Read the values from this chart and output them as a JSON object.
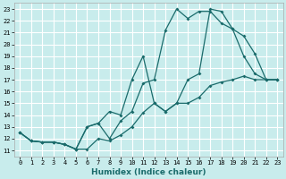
{
  "xlabel": "Humidex (Indice chaleur)",
  "bg_color": "#c8ecec",
  "grid_color": "#b0dada",
  "line_color": "#1a6b6b",
  "xlim": [
    -0.5,
    23.5
  ],
  "ylim": [
    10.5,
    23.5
  ],
  "xticks": [
    0,
    1,
    2,
    3,
    4,
    5,
    6,
    7,
    8,
    9,
    10,
    11,
    12,
    13,
    14,
    15,
    16,
    17,
    18,
    19,
    20,
    21,
    22,
    23
  ],
  "yticks": [
    11,
    12,
    13,
    14,
    15,
    16,
    17,
    18,
    19,
    20,
    21,
    22,
    23
  ],
  "line1_x": [
    0,
    1,
    2,
    3,
    4,
    5,
    6,
    7,
    8,
    9,
    10,
    11,
    12,
    13,
    14,
    15,
    16,
    17,
    18,
    19,
    20,
    21,
    22,
    23
  ],
  "line1_y": [
    12.5,
    11.8,
    11.7,
    11.7,
    11.5,
    11.1,
    11.1,
    12.0,
    11.8,
    12.3,
    13.0,
    14.2,
    15.0,
    14.3,
    15.0,
    15.0,
    15.5,
    16.5,
    16.8,
    17.0,
    17.3,
    17.0,
    17.0,
    17.0
  ],
  "line2_x": [
    0,
    1,
    2,
    3,
    4,
    5,
    6,
    7,
    8,
    9,
    10,
    11,
    12,
    13,
    14,
    15,
    16,
    17,
    18,
    19,
    20,
    21,
    22,
    23
  ],
  "line2_y": [
    12.5,
    11.8,
    11.7,
    11.7,
    11.5,
    11.1,
    13.0,
    13.3,
    12.0,
    13.5,
    14.3,
    16.7,
    17.0,
    21.2,
    23.0,
    22.2,
    22.8,
    22.8,
    21.8,
    21.3,
    20.7,
    19.2,
    17.0,
    17.0
  ],
  "line3_x": [
    0,
    1,
    2,
    3,
    4,
    5,
    6,
    7,
    8,
    9,
    10,
    11,
    12,
    13,
    14,
    15,
    16,
    17,
    18,
    19,
    20,
    21,
    22,
    23
  ],
  "line3_y": [
    12.5,
    11.8,
    11.7,
    11.7,
    11.5,
    11.1,
    13.0,
    13.3,
    14.3,
    14.0,
    17.0,
    19.0,
    15.0,
    14.3,
    15.0,
    17.0,
    17.5,
    23.0,
    22.8,
    21.3,
    19.0,
    17.5,
    17.0,
    17.0
  ],
  "marker_size": 2,
  "line_width": 0.9,
  "tick_fontsize": 5.0,
  "xlabel_fontsize": 6.5
}
